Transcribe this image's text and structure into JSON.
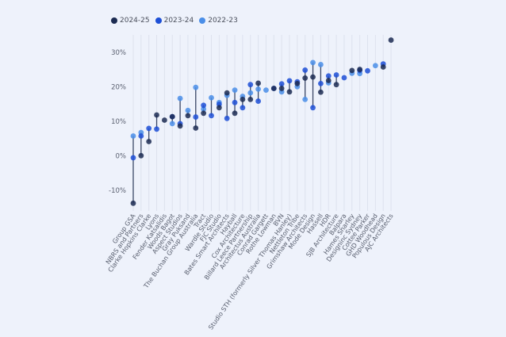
{
  "chart_data": {
    "type": "dot-range",
    "title": "",
    "xlabel": "",
    "ylabel": "",
    "ylim": [
      -15,
      35
    ],
    "yticks": [
      -10,
      0,
      10,
      20,
      30
    ],
    "ytick_labels": [
      "-10%",
      "0%",
      "10%",
      "20%",
      "30%"
    ],
    "grid": "vertical",
    "legend_position": "top-left",
    "categories": [
      "Group GSA",
      "NBRS and Partners",
      "Clarke Hopkins Clarke",
      "Lyons",
      "Fender Katsalidis",
      "Woods Bagot",
      "Aspect Studios",
      "Gray Puksand",
      "The Buchan Group Australia",
      "Tract",
      "Wardle Studio",
      "FJC Studio",
      "Bates Smart Architects",
      "Hayball",
      "Cox Architecture",
      "Billard Leece Partnership",
      "Architectus Australia",
      "Conrad Gargett",
      "Rothe Lowman",
      "BVN",
      "Studio STH (formerly Silver Thomas Hanley)",
      "Nettleton Tribe",
      "Grimshaw Architects",
      "Mode Design",
      "Hassell",
      "HDR",
      "SJB Architecture",
      "Balpara",
      "Hames Sharley",
      "Designinc Sydney",
      "Cottee Parker",
      "GHD Woodhead",
      "Populous Design",
      "AJC Architects"
    ],
    "series": [
      {
        "name": "2024-25",
        "color": "#1c2b52",
        "values": [
          -13.8,
          0,
          4.1,
          11.8,
          10.3,
          11.3,
          8.6,
          11.6,
          8.0,
          12.3,
          null,
          13.9,
          18.2,
          12.3,
          16.3,
          16.3,
          21.0,
          null,
          19.5,
          19.5,
          18.5,
          20.9,
          22.5,
          22.8,
          18.4,
          21.8,
          20.6,
          null,
          24.7,
          25.0,
          null,
          null,
          25.7,
          33.5
        ]
      },
      {
        "name": "2023-24",
        "color": "#1d4fd6",
        "values": [
          -0.6,
          5.7,
          7.9,
          7.7,
          null,
          11.3,
          9.3,
          null,
          11.2,
          14.6,
          11.6,
          14.9,
          10.8,
          15.4,
          13.9,
          20.6,
          15.8,
          null,
          19.5,
          20.8,
          21.7,
          21.4,
          24.8,
          13.9,
          20.9,
          23.1,
          23.4,
          22.6,
          null,
          24.7,
          24.6,
          null,
          26.6,
          null
        ]
      },
      {
        "name": "2022-23",
        "color": "#4a8ee8",
        "values": [
          5.7,
          6.7,
          null,
          null,
          null,
          9.3,
          16.6,
          13.1,
          19.8,
          13.5,
          16.8,
          15.4,
          17.5,
          19.0,
          17.2,
          18.2,
          19.3,
          19.0,
          null,
          18.5,
          null,
          20.0,
          16.3,
          27.0,
          26.4,
          21.1,
          null,
          null,
          23.9,
          23.8,
          null,
          26.1,
          null,
          null
        ]
      }
    ]
  }
}
